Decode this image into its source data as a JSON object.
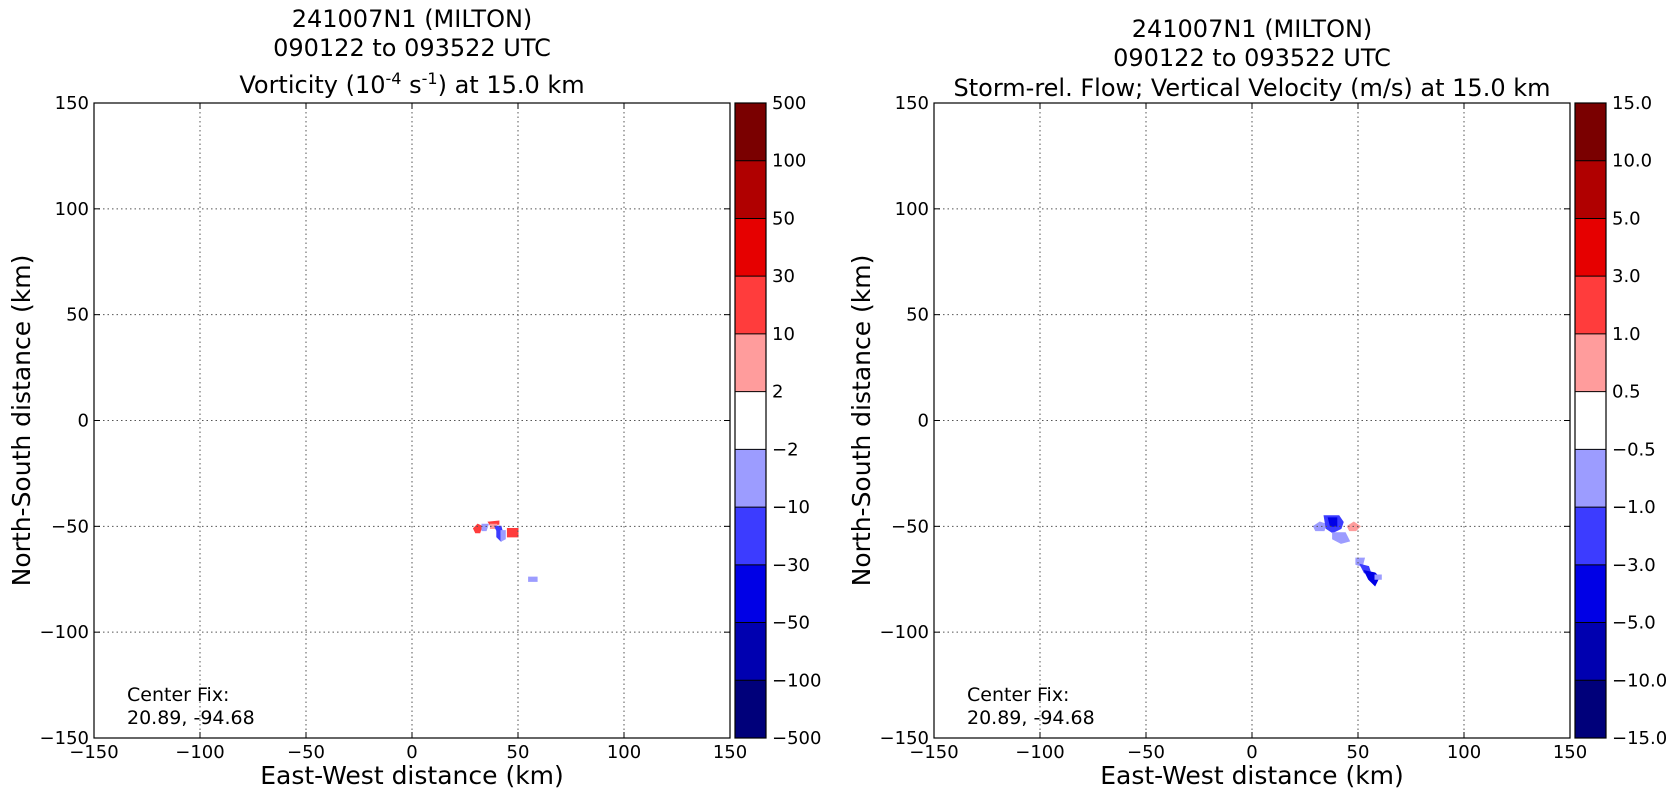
{
  "chart_data": [
    {
      "type": "contour",
      "title_lines": [
        "241007N1 (MILTON)",
        "090122 to 093522 UTC"
      ],
      "title_field": "Vorticity (10",
      "title_exp1": "-4",
      "title_mid": " s",
      "title_exp2": "-1",
      "title_end": ") at 15.0 km",
      "xlabel": "East-West distance (km)",
      "ylabel": "North-South distance (km)",
      "xlim": [
        -150,
        150
      ],
      "ylim": [
        -150,
        150
      ],
      "xticks": [
        "−150",
        "−100",
        "−50",
        "0",
        "50",
        "100",
        "150"
      ],
      "yticks": [
        "150",
        "100",
        "50",
        "0",
        "−50",
        "−100",
        "−150"
      ],
      "grid": true,
      "annotation": [
        "Center Fix:",
        "20.89, -94.68"
      ],
      "colorbar": {
        "levels": [
          "500",
          "100",
          "50",
          "30",
          "10",
          "2",
          "−2",
          "−10",
          "−30",
          "−50",
          "−100",
          "−500"
        ],
        "colors": [
          "#7a0000",
          "#b00000",
          "#e60000",
          "#ff3c3c",
          "#ff9c9c",
          "#ffffff",
          "#9c9cff",
          "#3c3cff",
          "#0000e6",
          "#0000b0",
          "#00007a"
        ]
      },
      "features": [
        {
          "color": "#ff3c3c",
          "points": [
            [
              29,
              -51
            ],
            [
              31,
              -49
            ],
            [
              33,
              -50
            ],
            [
              32,
              -53
            ],
            [
              30,
              -53
            ]
          ]
        },
        {
          "color": "#ff3c3c",
          "points": [
            [
              36,
              -48
            ],
            [
              41,
              -47.5
            ],
            [
              41,
              -49
            ],
            [
              37,
              -49.5
            ]
          ]
        },
        {
          "color": "#ff9c9c",
          "points": [
            [
              37,
              -49
            ],
            [
              40,
              -49
            ],
            [
              40,
              -51
            ],
            [
              37,
              -51
            ]
          ]
        },
        {
          "color": "#ff3c3c",
          "points": [
            [
              45,
              -51
            ],
            [
              50,
              -51
            ],
            [
              50,
              -55
            ],
            [
              45,
              -55
            ]
          ]
        },
        {
          "color": "#9c9cff",
          "points": [
            [
              33,
              -49
            ],
            [
              36,
              -49
            ],
            [
              35,
              -52
            ],
            [
              33,
              -52
            ]
          ]
        },
        {
          "color": "#3c3cff",
          "points": [
            [
              39,
              -50
            ],
            [
              42,
              -50
            ],
            [
              43,
              -54
            ],
            [
              42,
              -57
            ],
            [
              40,
              -55
            ],
            [
              40,
              -52
            ]
          ]
        },
        {
          "color": "#9c9cff",
          "points": [
            [
              42,
              -52
            ],
            [
              44,
              -52
            ],
            [
              44,
              -56
            ],
            [
              42,
              -57
            ]
          ]
        },
        {
          "color": "#9c9cff",
          "points": [
            [
              55,
              -74
            ],
            [
              59,
              -74
            ],
            [
              59,
              -76
            ],
            [
              55,
              -76
            ]
          ]
        }
      ]
    },
    {
      "type": "contour",
      "title_lines": [
        "241007N1 (MILTON)",
        "090122 to 093522 UTC",
        "Storm-rel. Flow; Vertical Velocity (m/s) at 15.0 km"
      ],
      "xlabel": "East-West distance (km)",
      "ylabel": "North-South distance (km)",
      "xlim": [
        -150,
        150
      ],
      "ylim": [
        -150,
        150
      ],
      "xticks": [
        "−150",
        "−100",
        "−50",
        "0",
        "50",
        "100",
        "150"
      ],
      "yticks": [
        "150",
        "100",
        "50",
        "0",
        "−50",
        "−100",
        "−150"
      ],
      "grid": true,
      "annotation": [
        "Center Fix:",
        "20.89, -94.68"
      ],
      "colorbar": {
        "levels": [
          "15.0",
          "10.0",
          "5.0",
          "3.0",
          "1.0",
          "0.5",
          "−0.5",
          "−1.0",
          "−3.0",
          "−5.0",
          "−10.0",
          "−15.0"
        ],
        "colors": [
          "#7a0000",
          "#b00000",
          "#e60000",
          "#ff3c3c",
          "#ff9c9c",
          "#ffffff",
          "#9c9cff",
          "#3c3cff",
          "#0000e6",
          "#0000b0",
          "#00007a"
        ]
      },
      "features": [
        {
          "color": "#9c9cff",
          "points": [
            [
              29,
              -50
            ],
            [
              32,
              -48
            ],
            [
              35,
              -49
            ],
            [
              34,
              -52
            ],
            [
              30,
              -52
            ]
          ]
        },
        {
          "color": "#3c3cff",
          "points": [
            [
              34,
              -45
            ],
            [
              41,
              -45
            ],
            [
              43,
              -48
            ],
            [
              42,
              -51
            ],
            [
              38,
              -53
            ],
            [
              35,
              -51
            ]
          ]
        },
        {
          "color": "#0000e6",
          "points": [
            [
              36,
              -46
            ],
            [
              40,
              -46
            ],
            [
              40,
              -50
            ],
            [
              37,
              -50
            ]
          ]
        },
        {
          "color": "#9c9cff",
          "points": [
            [
              38,
              -53
            ],
            [
              44,
              -53
            ],
            [
              46,
              -57
            ],
            [
              42,
              -58
            ],
            [
              38,
              -56
            ]
          ]
        },
        {
          "color": "#ff9c9c",
          "points": [
            [
              45,
              -50
            ],
            [
              48,
              -48
            ],
            [
              51,
              -50
            ],
            [
              49,
              -52
            ],
            [
              46,
              -52
            ]
          ]
        },
        {
          "color": "#9c9cff",
          "points": [
            [
              49,
              -65
            ],
            [
              53,
              -65
            ],
            [
              52,
              -69
            ],
            [
              49,
              -68
            ]
          ]
        },
        {
          "color": "#3c3cff",
          "points": [
            [
              51,
              -68
            ],
            [
              55,
              -69
            ],
            [
              56,
              -72
            ],
            [
              53,
              -72
            ]
          ]
        },
        {
          "color": "#0000e6",
          "points": [
            [
              53,
              -71
            ],
            [
              58,
              -72
            ],
            [
              60,
              -74
            ],
            [
              58,
              -78
            ],
            [
              55,
              -75
            ]
          ]
        },
        {
          "color": "#9c9cff",
          "points": [
            [
              58,
              -73
            ],
            [
              61,
              -73
            ],
            [
              61,
              -75
            ],
            [
              58,
              -75
            ]
          ]
        }
      ]
    }
  ]
}
